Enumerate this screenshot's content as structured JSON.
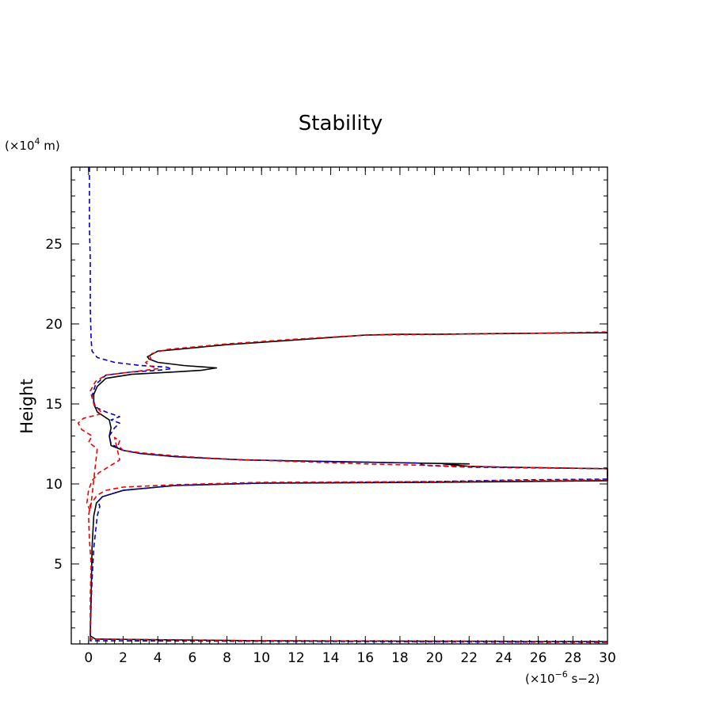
{
  "chart_data": {
    "type": "line",
    "title": "Stability",
    "ylabel": "Height",
    "y_unit_prefix": "(×10",
    "y_unit_exp": "4",
    "y_unit_suffix": " m)",
    "x_unit_prefix": "(×10",
    "x_unit_exp": "−6",
    "x_unit_suffix": " s−2)",
    "xlim": [
      -1,
      30
    ],
    "ylim": [
      0,
      29.8
    ],
    "x_ticks": [
      0,
      2,
      4,
      6,
      8,
      10,
      12,
      14,
      16,
      18,
      20,
      22,
      24,
      26,
      28,
      30
    ],
    "y_ticks": [
      5,
      10,
      15,
      20,
      25
    ],
    "x_minor_step": 0.5,
    "y_minor_step": 1,
    "grid": false,
    "series": [
      {
        "color": "#000000",
        "dash": "solid",
        "points": [
          [
            30,
            0.15
          ],
          [
            10,
            0.2
          ],
          [
            0.4,
            0.3
          ],
          [
            0.1,
            0.5
          ],
          [
            0.15,
            3
          ],
          [
            0.2,
            6
          ],
          [
            0.3,
            8
          ],
          [
            0.45,
            8.8
          ],
          [
            0.8,
            9.2
          ],
          [
            2,
            9.6
          ],
          [
            5,
            9.9
          ],
          [
            10,
            10.05
          ],
          [
            20,
            10.1
          ],
          [
            30,
            10.2
          ],
          [
            30,
            10.95
          ],
          [
            24,
            11.05
          ],
          [
            22,
            11.1
          ],
          [
            20.5,
            11.25
          ],
          [
            22,
            11.25
          ],
          [
            19,
            11.3
          ],
          [
            14,
            11.4
          ],
          [
            9,
            11.5
          ],
          [
            5,
            11.7
          ],
          [
            3,
            11.9
          ],
          [
            2,
            12.1
          ],
          [
            1.3,
            12.4
          ],
          [
            1.2,
            13
          ],
          [
            1.3,
            13.5
          ],
          [
            1.2,
            14
          ],
          [
            0.5,
            14.5
          ],
          [
            0.3,
            15
          ],
          [
            0.3,
            15.6
          ],
          [
            0.5,
            16.1
          ],
          [
            1,
            16.6
          ],
          [
            2.5,
            16.85
          ],
          [
            5,
            17
          ],
          [
            6.5,
            17.1
          ],
          [
            7.4,
            17.25
          ],
          [
            5.5,
            17.4
          ],
          [
            4,
            17.6
          ],
          [
            3.5,
            17.8
          ],
          [
            3.4,
            17.95
          ],
          [
            4,
            18.3
          ],
          [
            6,
            18.5
          ],
          [
            8,
            18.7
          ],
          [
            10,
            18.85
          ],
          [
            12,
            19
          ],
          [
            14,
            19.15
          ],
          [
            16,
            19.3
          ],
          [
            18,
            19.35
          ],
          [
            20,
            19.35
          ],
          [
            24,
            19.4
          ],
          [
            30,
            19.45
          ]
        ]
      },
      {
        "color": "#0000cc",
        "dash": "dashed",
        "points": [
          [
            0.05,
            29.8
          ],
          [
            0.05,
            26
          ],
          [
            0.1,
            24
          ],
          [
            0.1,
            21
          ],
          [
            0.15,
            19
          ],
          [
            0.2,
            18.3
          ],
          [
            0.5,
            17.9
          ],
          [
            1.5,
            17.6
          ],
          [
            3,
            17.4
          ],
          [
            4.5,
            17.3
          ],
          [
            4.8,
            17.2
          ],
          [
            4,
            17.1
          ],
          [
            2.5,
            17
          ],
          [
            1,
            16.8
          ],
          [
            0.4,
            16.2
          ],
          [
            0.2,
            15.5
          ],
          [
            0.4,
            14.8
          ],
          [
            1,
            14.5
          ],
          [
            1.8,
            14.2
          ],
          [
            1.3,
            14
          ],
          [
            1.8,
            13.8
          ],
          [
            1.5,
            13.5
          ],
          [
            1.2,
            13
          ],
          [
            1.3,
            12.5
          ],
          [
            2,
            12.1
          ],
          [
            3,
            11.9
          ],
          [
            5,
            11.7
          ],
          [
            9,
            11.5
          ],
          [
            14,
            11.4
          ],
          [
            19,
            11.3
          ],
          [
            19.5,
            11.15
          ],
          [
            22,
            11.05
          ],
          [
            30,
            10.95
          ],
          [
            30,
            10.3
          ],
          [
            25,
            10.25
          ],
          [
            20,
            10.15
          ],
          [
            10,
            10.05
          ],
          [
            5,
            9.9
          ],
          [
            2,
            9.6
          ],
          [
            0.8,
            9.2
          ],
          [
            0.55,
            8.9
          ],
          [
            0.65,
            8.6
          ],
          [
            0.5,
            8
          ],
          [
            0.3,
            6
          ],
          [
            0.2,
            4
          ],
          [
            0.1,
            1
          ],
          [
            0.1,
            0.2
          ],
          [
            15,
            0.15
          ],
          [
            30,
            0.1
          ]
        ]
      },
      {
        "color": "#ee0000",
        "dash": "dashed",
        "points": [
          [
            30,
            0.15
          ],
          [
            10,
            0.2
          ],
          [
            0.1,
            0.3
          ],
          [
            0.1,
            3
          ],
          [
            0.15,
            5
          ],
          [
            0.05,
            6.5
          ],
          [
            0,
            8
          ],
          [
            0.1,
            8.7
          ],
          [
            0.5,
            9.3
          ],
          [
            1,
            9.6
          ],
          [
            2,
            9.8
          ],
          [
            5,
            9.95
          ],
          [
            10,
            10.1
          ],
          [
            20,
            10.15
          ],
          [
            30,
            10.25
          ],
          [
            30,
            10.95
          ],
          [
            24,
            11.05
          ],
          [
            20,
            11.15
          ],
          [
            16,
            11.25
          ],
          [
            12,
            11.4
          ],
          [
            8,
            11.55
          ],
          [
            5,
            11.75
          ],
          [
            3,
            11.95
          ],
          [
            2,
            12.1
          ],
          [
            1.7,
            12.4
          ],
          [
            1.8,
            12.7
          ],
          [
            1.5,
            12.9
          ],
          [
            1.8,
            11.5
          ],
          [
            1.2,
            11.1
          ],
          [
            0.6,
            10.7
          ],
          [
            0.2,
            10.2
          ],
          [
            0,
            9.6
          ],
          [
            -0.1,
            8.8
          ],
          [
            0.1,
            8.3
          ],
          [
            0.5,
            12.2
          ],
          [
            0,
            12.6
          ],
          [
            0.2,
            13
          ],
          [
            -0.4,
            13.4
          ],
          [
            -0.6,
            13.8
          ],
          [
            -0.3,
            14.1
          ],
          [
            0.8,
            14.4
          ],
          [
            0.3,
            15
          ],
          [
            0.1,
            15.8
          ],
          [
            0.4,
            16.4
          ],
          [
            1,
            16.8
          ],
          [
            2.5,
            17
          ],
          [
            4,
            17.2
          ],
          [
            3.5,
            17.4
          ],
          [
            3.3,
            17.6
          ],
          [
            3.6,
            17.8
          ],
          [
            3.5,
            18.1
          ],
          [
            4.5,
            18.4
          ],
          [
            8,
            18.75
          ],
          [
            12,
            19.05
          ],
          [
            16,
            19.3
          ],
          [
            20,
            19.35
          ],
          [
            25,
            19.4
          ],
          [
            30,
            19.5
          ]
        ]
      }
    ]
  }
}
